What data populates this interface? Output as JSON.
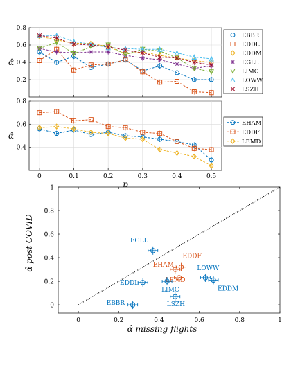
{
  "colors": {
    "blue": "#0072BD",
    "orange": "#D95319",
    "yellow": "#EDB120",
    "purple": "#7E2F8E",
    "green": "#77AC30",
    "cyan": "#4DBEEE",
    "red": "#A2142F",
    "black": "#000000"
  },
  "chart_data": [
    {
      "type": "line",
      "xlabel": "",
      "ylabel": "α̂",
      "xlim": [
        -0.03,
        0.53
      ],
      "ylim": [
        0,
        0.8
      ],
      "xticks": [
        "0",
        "0.1",
        "0.2",
        "0.3",
        "0.4",
        "0.5"
      ],
      "yticks": [
        "0.2",
        "0.4",
        "0.6",
        "0.8"
      ],
      "x": [
        0,
        0.05,
        0.1,
        0.15,
        0.2,
        0.25,
        0.3,
        0.35,
        0.4,
        0.45,
        0.5
      ],
      "legend_position": "right",
      "series": [
        {
          "name": "EBBR",
          "color": "blue",
          "marker": "o",
          "values": [
            0.52,
            0.4,
            0.47,
            0.34,
            0.38,
            0.43,
            0.3,
            0.36,
            0.28,
            0.2,
            0.2
          ]
        },
        {
          "name": "EDDL",
          "color": "orange",
          "marker": "s",
          "values": [
            0.42,
            0.55,
            0.31,
            0.37,
            0.38,
            0.43,
            0.29,
            0.17,
            0.18,
            0.06,
            0.05
          ]
        },
        {
          "name": "EDDM",
          "color": "yellow",
          "marker": "d",
          "values": [
            0.7,
            0.66,
            0.62,
            0.62,
            0.58,
            0.5,
            0.52,
            0.48,
            0.45,
            0.42,
            0.4
          ]
        },
        {
          "name": "EGLL",
          "color": "purple",
          "marker": "*",
          "values": [
            0.56,
            0.52,
            0.51,
            0.52,
            0.52,
            0.48,
            0.45,
            0.43,
            0.38,
            0.33,
            0.36
          ]
        },
        {
          "name": "LIMC",
          "color": "green",
          "marker": "v",
          "values": [
            0.56,
            0.63,
            0.5,
            0.58,
            0.6,
            0.49,
            0.55,
            0.53,
            0.45,
            0.33,
            0.29
          ]
        },
        {
          "name": "LOWW",
          "color": "cyan",
          "marker": "^",
          "values": [
            0.71,
            0.71,
            0.64,
            0.61,
            0.57,
            0.56,
            0.55,
            0.55,
            0.51,
            0.46,
            0.44
          ]
        },
        {
          "name": "LSZH",
          "color": "red",
          "marker": "x",
          "values": [
            0.71,
            0.68,
            0.61,
            0.6,
            0.58,
            0.54,
            0.51,
            0.46,
            0.45,
            0.4,
            0.37
          ]
        }
      ]
    },
    {
      "type": "line",
      "xlabel": "p",
      "ylabel": "α̂",
      "xlim": [
        -0.03,
        0.53
      ],
      "ylim": [
        0.2,
        0.8
      ],
      "xticks": [
        "0",
        "0.1",
        "0.2",
        "0.3",
        "0.4",
        "0.5"
      ],
      "yticks": [
        "0.4",
        "0.6",
        "0.8"
      ],
      "x": [
        0,
        0.05,
        0.1,
        0.15,
        0.2,
        0.25,
        0.3,
        0.35,
        0.4,
        0.45,
        0.5
      ],
      "legend_position": "right",
      "series": [
        {
          "name": "EHAM",
          "color": "blue",
          "marker": "o",
          "values": [
            0.56,
            0.52,
            0.55,
            0.51,
            0.53,
            0.5,
            0.49,
            0.47,
            0.45,
            0.42,
            0.29
          ]
        },
        {
          "name": "EDDF",
          "color": "orange",
          "marker": "s",
          "values": [
            0.7,
            0.71,
            0.63,
            0.64,
            0.58,
            0.57,
            0.53,
            0.52,
            0.45,
            0.39,
            0.38
          ]
        },
        {
          "name": "LEMD",
          "color": "yellow",
          "marker": "d",
          "values": [
            0.57,
            0.58,
            0.56,
            0.53,
            0.52,
            0.48,
            0.47,
            0.38,
            0.35,
            0.32,
            0.24
          ]
        }
      ]
    },
    {
      "type": "scatter",
      "xlabel": "α̂ missing flights",
      "ylabel": "α̂ post COVID",
      "xlim": [
        -0.1,
        1.0
      ],
      "ylim": [
        -0.07,
        1.0
      ],
      "xticks": [
        "0",
        "0.2",
        "0.4",
        "0.6",
        "0.8",
        "1"
      ],
      "yticks": [
        "0",
        "0.2",
        "0.4",
        "0.6",
        "0.8",
        "1"
      ],
      "diagonal": true,
      "points": [
        {
          "label": "EGLL",
          "x": 0.37,
          "y": 0.46,
          "color": "blue"
        },
        {
          "label": "EDDF",
          "x": 0.51,
          "y": 0.32,
          "color": "orange"
        },
        {
          "label": "EHAM",
          "x": 0.48,
          "y": 0.3,
          "color": "orange"
        },
        {
          "label": "LOWW",
          "x": 0.63,
          "y": 0.23,
          "color": "blue"
        },
        {
          "label": "LEMD",
          "x": 0.5,
          "y": 0.23,
          "color": "orange"
        },
        {
          "label": "EDDL",
          "x": 0.32,
          "y": 0.19,
          "color": "blue"
        },
        {
          "label": "LIMC",
          "x": 0.44,
          "y": 0.2,
          "color": "blue"
        },
        {
          "label": "EDDM",
          "x": 0.67,
          "y": 0.21,
          "color": "blue"
        },
        {
          "label": "LSZH",
          "x": 0.48,
          "y": 0.07,
          "color": "blue"
        },
        {
          "label": "EBBR",
          "x": 0.27,
          "y": 0.0,
          "color": "blue"
        }
      ]
    }
  ]
}
